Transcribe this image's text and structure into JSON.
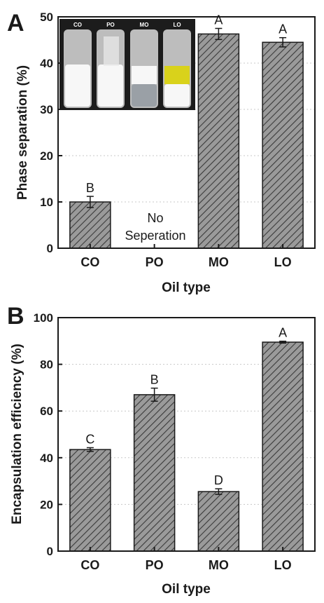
{
  "chart_data": [
    {
      "panel": "A",
      "type": "bar",
      "xlabel": "Oil type",
      "ylabel": "Phase separation (%)",
      "categories": [
        "CO",
        "PO",
        "MO",
        "LO"
      ],
      "values": [
        10.0,
        null,
        46.3,
        44.5
      ],
      "errors": [
        1.2,
        null,
        1.2,
        1.0
      ],
      "significance": [
        "B",
        "",
        "A",
        "A"
      ],
      "ylim": [
        0,
        50
      ],
      "yticks": [
        0,
        10,
        20,
        30,
        40,
        50
      ],
      "grid": true,
      "bar_fill": "diagonal hatch on gray",
      "annotation": [
        "No",
        "Seperation"
      ],
      "inset_vials": [
        "CO",
        "PO",
        "MO",
        "LO"
      ]
    },
    {
      "panel": "B",
      "type": "bar",
      "xlabel": "Oil type",
      "ylabel": "Encapsulation efficiency (%)",
      "categories": [
        "CO",
        "PO",
        "MO",
        "LO"
      ],
      "values": [
        43.5,
        67.0,
        25.5,
        89.5
      ],
      "errors": [
        0.8,
        2.8,
        1.2,
        0.4
      ],
      "significance": [
        "C",
        "B",
        "D",
        "A"
      ],
      "ylim": [
        0,
        100
      ],
      "yticks": [
        0,
        20,
        40,
        60,
        80,
        100
      ],
      "grid": true,
      "bar_fill": "diagonal hatch on gray"
    }
  ],
  "colors": {
    "bar_fill": "#9a9a9a",
    "hatch": "#3a3a3a",
    "grid": "#c8c8c8",
    "axis": "#1a1a1a",
    "vial_background": "#1c1c1c",
    "vial_glass": "#bdbdbd",
    "white_phase": "#f7f7f7",
    "oil_phase_lo": "#d9d21b",
    "clear_phase": "#9aa0a6"
  }
}
